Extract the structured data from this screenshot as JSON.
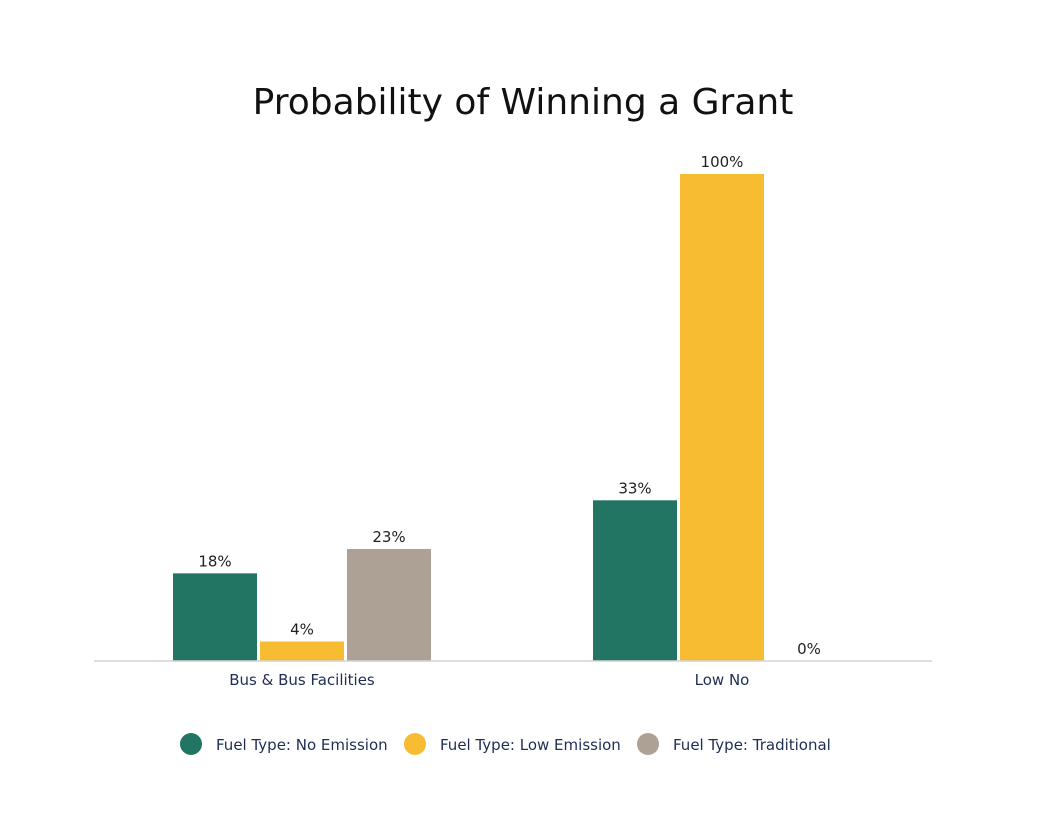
{
  "chart_data": {
    "type": "bar",
    "title": "Probability of Winning a Grant",
    "xlabel": "",
    "ylabel": "",
    "categories": [
      "Bus & Bus Facilities",
      "Low No"
    ],
    "ylim": [
      0,
      100
    ],
    "grid": false,
    "legend_position": "bottom",
    "series": [
      {
        "name": "Fuel Type: No Emission",
        "color": "#227562",
        "values": [
          18,
          33
        ],
        "labels": [
          "18%",
          "33%"
        ]
      },
      {
        "name": "Fuel Type: Low Emission",
        "color": "#f8bc32",
        "values": [
          4,
          100
        ],
        "labels": [
          "4%",
          "100%"
        ]
      },
      {
        "name": "Fuel Type: Traditional",
        "color": "#ada196",
        "values": [
          23,
          0
        ],
        "labels": [
          "23%",
          "0%"
        ]
      }
    ]
  },
  "colors": {
    "axis": "#d4d4d8",
    "category_text": "#1f2d55"
  }
}
